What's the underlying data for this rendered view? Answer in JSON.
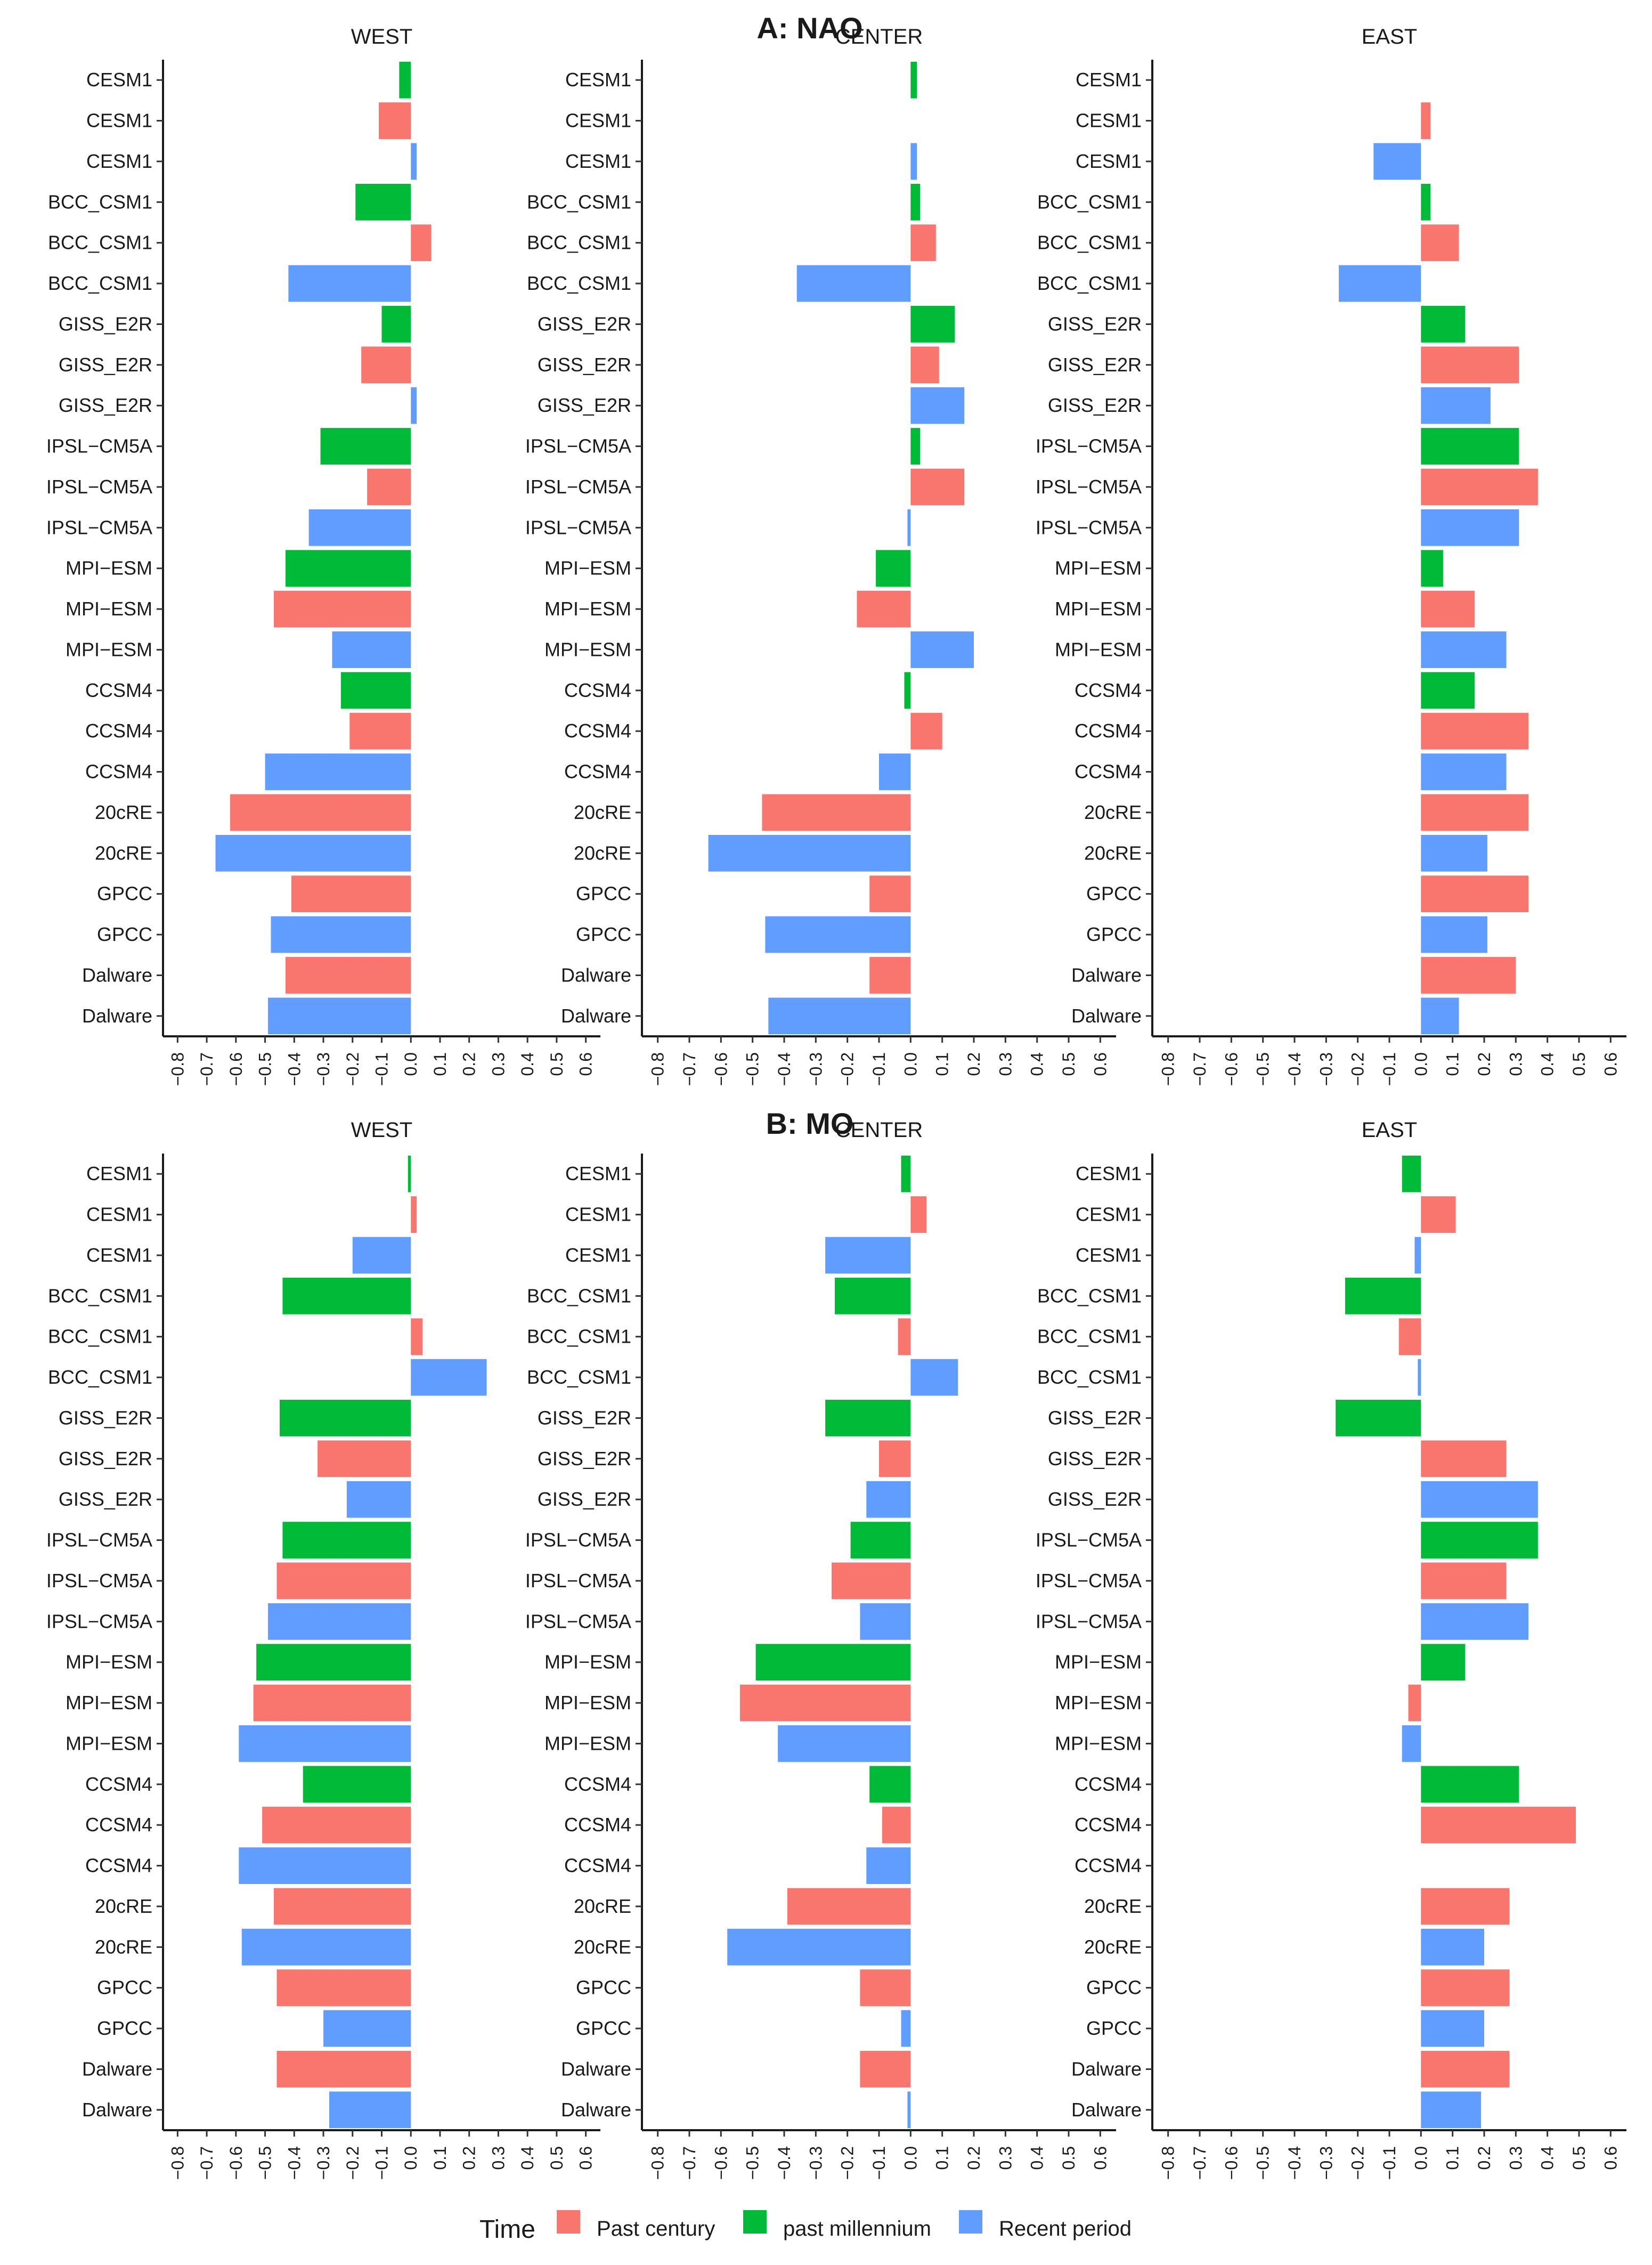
{
  "colors": {
    "Past century": "#F8766D",
    "past millennium": "#00BA38",
    "Recent period": "#619CFF"
  },
  "legend": {
    "title": "Time",
    "entries": [
      "Past century",
      "past millennium",
      "Recent period"
    ]
  },
  "chart_data": [
    {
      "type": "bar",
      "orientation": "horizontal",
      "title": "A: NAO",
      "xlim": [
        -0.85,
        0.65
      ],
      "ticks": [
        "-0.8",
        "-0.7",
        "-0.6",
        "-0.5",
        "-0.4",
        "-0.3",
        "-0.2",
        "-0.1",
        "0.0",
        "0.1",
        "0.2",
        "0.3",
        "0.4",
        "0.5",
        "0.6"
      ],
      "tick_values": [
        -0.8,
        -0.7,
        -0.6,
        -0.5,
        -0.4,
        -0.3,
        -0.2,
        -0.1,
        0.0,
        0.1,
        0.2,
        0.3,
        0.4,
        0.5,
        0.6
      ],
      "categories": [
        "CESM1",
        "CESM1",
        "CESM1",
        "BCC_CSM1",
        "BCC_CSM1",
        "BCC_CSM1",
        "GISS_E2R",
        "GISS_E2R",
        "GISS_E2R",
        "IPSL−CM5A",
        "IPSL−CM5A",
        "IPSL−CM5A",
        "MPI−ESM",
        "MPI−ESM",
        "MPI−ESM",
        "CCSM4",
        "CCSM4",
        "CCSM4",
        "20cRE",
        "20cRE",
        "GPCC",
        "GPCC",
        "Dalware",
        "Dalware"
      ],
      "groups": [
        "past millennium",
        "Past century",
        "Recent period",
        "past millennium",
        "Past century",
        "Recent period",
        "past millennium",
        "Past century",
        "Recent period",
        "past millennium",
        "Past century",
        "Recent period",
        "past millennium",
        "Past century",
        "Recent period",
        "past millennium",
        "Past century",
        "Recent period",
        "Past century",
        "Recent period",
        "Past century",
        "Recent period",
        "Past century",
        "Recent period"
      ],
      "facets": [
        {
          "name": "WEST",
          "values": [
            -0.04,
            -0.11,
            0.02,
            -0.19,
            0.07,
            -0.42,
            -0.1,
            -0.17,
            0.02,
            -0.31,
            -0.15,
            -0.35,
            -0.43,
            -0.47,
            -0.27,
            -0.24,
            -0.21,
            -0.5,
            -0.62,
            -0.67,
            -0.41,
            -0.48,
            -0.43,
            -0.49
          ]
        },
        {
          "name": "CENTER",
          "values": [
            0.02,
            null,
            0.02,
            0.03,
            0.08,
            -0.36,
            0.14,
            0.09,
            0.17,
            0.03,
            0.17,
            -0.01,
            -0.11,
            -0.17,
            0.2,
            -0.02,
            0.1,
            -0.1,
            -0.47,
            -0.64,
            -0.13,
            -0.46,
            -0.13,
            -0.45
          ]
        },
        {
          "name": "EAST",
          "values": [
            null,
            0.03,
            -0.15,
            0.03,
            0.12,
            -0.26,
            0.14,
            0.31,
            0.22,
            0.31,
            0.37,
            0.31,
            0.07,
            0.17,
            0.27,
            0.17,
            0.34,
            0.27,
            0.34,
            0.21,
            0.34,
            0.21,
            0.3,
            0.12
          ]
        }
      ]
    },
    {
      "type": "bar",
      "orientation": "horizontal",
      "title": "B: MO",
      "xlim": [
        -0.85,
        0.65
      ],
      "ticks": [
        "-0.8",
        "-0.7",
        "-0.6",
        "-0.5",
        "-0.4",
        "-0.3",
        "-0.2",
        "-0.1",
        "0.0",
        "0.1",
        "0.2",
        "0.3",
        "0.4",
        "0.5",
        "0.6"
      ],
      "tick_values": [
        -0.8,
        -0.7,
        -0.6,
        -0.5,
        -0.4,
        -0.3,
        -0.2,
        -0.1,
        0.0,
        0.1,
        0.2,
        0.3,
        0.4,
        0.5,
        0.6
      ],
      "categories": [
        "CESM1",
        "CESM1",
        "CESM1",
        "BCC_CSM1",
        "BCC_CSM1",
        "BCC_CSM1",
        "GISS_E2R",
        "GISS_E2R",
        "GISS_E2R",
        "IPSL−CM5A",
        "IPSL−CM5A",
        "IPSL−CM5A",
        "MPI−ESM",
        "MPI−ESM",
        "MPI−ESM",
        "CCSM4",
        "CCSM4",
        "CCSM4",
        "20cRE",
        "20cRE",
        "GPCC",
        "GPCC",
        "Dalware",
        "Dalware"
      ],
      "groups": [
        "past millennium",
        "Past century",
        "Recent period",
        "past millennium",
        "Past century",
        "Recent period",
        "past millennium",
        "Past century",
        "Recent period",
        "past millennium",
        "Past century",
        "Recent period",
        "past millennium",
        "Past century",
        "Recent period",
        "past millennium",
        "Past century",
        "Recent period",
        "Past century",
        "Recent period",
        "Past century",
        "Recent period",
        "Past century",
        "Recent period"
      ],
      "facets": [
        {
          "name": "WEST",
          "values": [
            -0.01,
            0.02,
            -0.2,
            -0.44,
            0.04,
            0.26,
            -0.45,
            -0.32,
            -0.22,
            -0.44,
            -0.46,
            -0.49,
            -0.53,
            -0.54,
            -0.59,
            -0.37,
            -0.51,
            -0.59,
            -0.47,
            -0.58,
            -0.46,
            -0.3,
            -0.46,
            -0.28
          ]
        },
        {
          "name": "CENTER",
          "values": [
            -0.03,
            0.05,
            -0.27,
            -0.24,
            -0.04,
            0.15,
            -0.27,
            -0.1,
            -0.14,
            -0.19,
            -0.25,
            -0.16,
            -0.49,
            -0.54,
            -0.42,
            -0.13,
            -0.09,
            -0.14,
            -0.39,
            -0.58,
            -0.16,
            -0.03,
            -0.16,
            -0.01
          ]
        },
        {
          "name": "EAST",
          "values": [
            -0.06,
            0.11,
            -0.02,
            -0.24,
            -0.07,
            -0.01,
            -0.27,
            0.27,
            0.37,
            0.37,
            0.27,
            0.34,
            0.14,
            -0.04,
            -0.06,
            0.31,
            0.49,
            null,
            0.28,
            0.2,
            0.28,
            0.2,
            0.28,
            0.19
          ]
        }
      ]
    }
  ]
}
